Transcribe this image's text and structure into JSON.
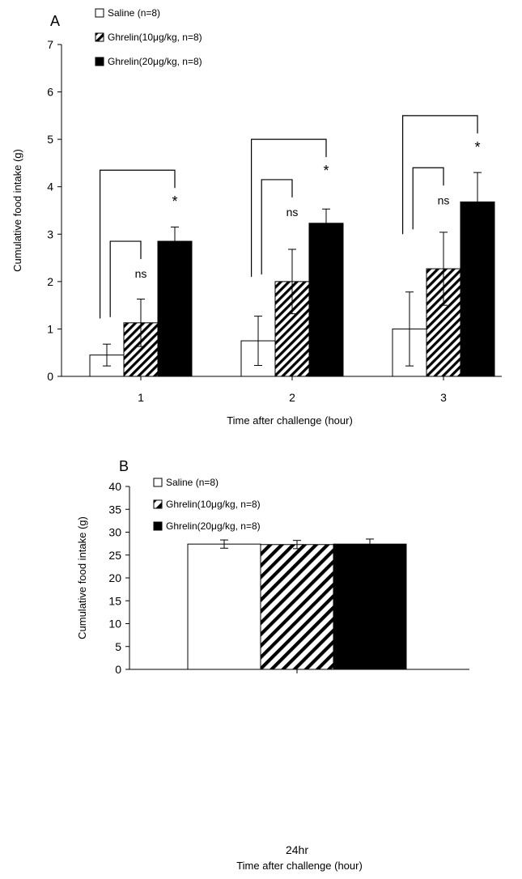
{
  "chart_data": [
    {
      "panel": "A",
      "type": "bar",
      "categories": [
        "1",
        "2",
        "3"
      ],
      "series": [
        {
          "name": "Saline (n=8)",
          "values": [
            0.45,
            0.75,
            1.0
          ],
          "errors": [
            0.23,
            0.52,
            0.78
          ],
          "fill": "white"
        },
        {
          "name": "Ghrelin(10μg/kg, n=8)",
          "values": [
            1.13,
            2.0,
            2.27
          ],
          "errors": [
            0.5,
            0.68,
            0.77
          ],
          "fill": "hatch"
        },
        {
          "name": "Ghrelin(20μg/kg, n=8)",
          "values": [
            2.85,
            3.23,
            3.68
          ],
          "errors": [
            0.3,
            0.3,
            0.62
          ],
          "fill": "black"
        }
      ],
      "xlabel": "Time after challenge (hour)",
      "ylabel": "Cumulative food intake (g)",
      "ylim": [
        0,
        7
      ],
      "yticks": [
        "0",
        "1",
        "2",
        "3",
        "4",
        "5",
        "6",
        "7"
      ],
      "annotations": {
        "ns_label": "ns",
        "sig_label": "*"
      },
      "brackets": [
        {
          "category": 0,
          "ns_y": 2.85,
          "sig_y": 4.35,
          "left_y": [
            1.22,
            1.25
          ]
        },
        {
          "category": 1,
          "ns_y": 4.15,
          "sig_y": 5.0,
          "left_y": [
            2.1,
            2.15
          ]
        },
        {
          "category": 2,
          "ns_y": 4.4,
          "sig_y": 5.5,
          "left_y": [
            3.0,
            3.1
          ]
        }
      ],
      "legend_position": "top-left"
    },
    {
      "panel": "B",
      "type": "bar",
      "categories": [
        "24hr"
      ],
      "series": [
        {
          "name": "Saline (n=8)",
          "values": [
            27.4
          ],
          "errors": [
            0.9
          ],
          "fill": "white"
        },
        {
          "name": "Ghrelin(10μg/kg, n=8)",
          "values": [
            27.3
          ],
          "errors": [
            0.9
          ],
          "fill": "hatch"
        },
        {
          "name": "Ghrelin(20μg/kg, n=8)",
          "values": [
            27.4
          ],
          "errors": [
            1.1
          ],
          "fill": "black"
        }
      ],
      "xlabel": "Time after challenge (hour)",
      "ylabel": "Cumulative food intake (g)",
      "ylim": [
        0,
        40
      ],
      "yticks": [
        "0",
        "5",
        "10",
        "15",
        "20",
        "25",
        "30",
        "35",
        "40"
      ],
      "legend_position": "top-left"
    }
  ],
  "colors": {
    "bar_stroke": "#000000",
    "black_fill": "#000000",
    "white_fill": "#ffffff"
  }
}
